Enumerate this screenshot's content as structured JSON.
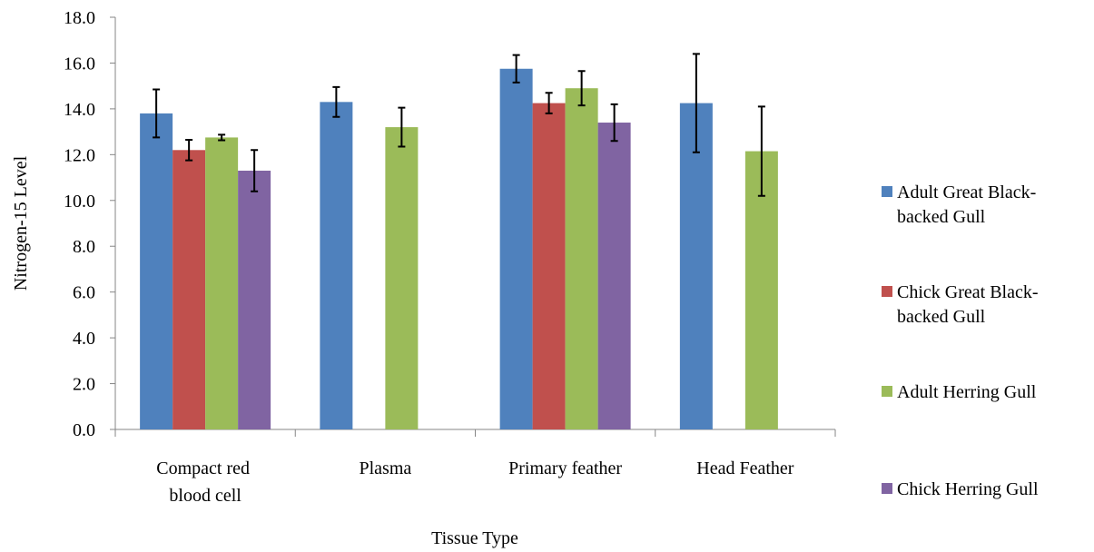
{
  "chart_data": {
    "type": "bar",
    "x_label": "Tissue Type",
    "y_label": "Nitrogen-15 Level",
    "categories": [
      "Compact red blood cell",
      "Plasma",
      "Primary feather",
      "Head Feather"
    ],
    "series": [
      {
        "name": "Adult Great Black-backed Gull",
        "color": "#4f81bd",
        "values": [
          13.8,
          14.3,
          15.75,
          14.25
        ],
        "errors": [
          1.05,
          0.65,
          0.6,
          2.15
        ]
      },
      {
        "name": "Chick Great Black-backed Gull",
        "color": "#c0504d",
        "values": [
          12.2,
          null,
          14.25,
          null
        ],
        "errors": [
          0.45,
          null,
          0.45,
          null
        ]
      },
      {
        "name": "Adult Herring Gull",
        "color": "#9bbb59",
        "values": [
          12.75,
          13.2,
          14.9,
          12.15
        ],
        "errors": [
          0.12,
          0.85,
          0.75,
          1.95
        ]
      },
      {
        "name": "Chick Herring Gull",
        "color": "#8064a2",
        "values": [
          11.3,
          null,
          13.4,
          null
        ],
        "errors": [
          0.9,
          null,
          0.8,
          null
        ]
      }
    ],
    "ylim": [
      0,
      18
    ],
    "yticks": [
      {
        "value": 0,
        "label": "0.0"
      },
      {
        "value": 2,
        "label": "2.0"
      },
      {
        "value": 4,
        "label": "4.0"
      },
      {
        "value": 6,
        "label": "6.0"
      },
      {
        "value": 8,
        "label": "8.0"
      },
      {
        "value": 10,
        "label": "10.0"
      },
      {
        "value": 12,
        "label": "12.0"
      },
      {
        "value": 14,
        "label": "14.0"
      },
      {
        "value": 16,
        "label": "16.0"
      },
      {
        "value": 18,
        "label": "18.0"
      }
    ],
    "grid": false,
    "legend": "right"
  }
}
